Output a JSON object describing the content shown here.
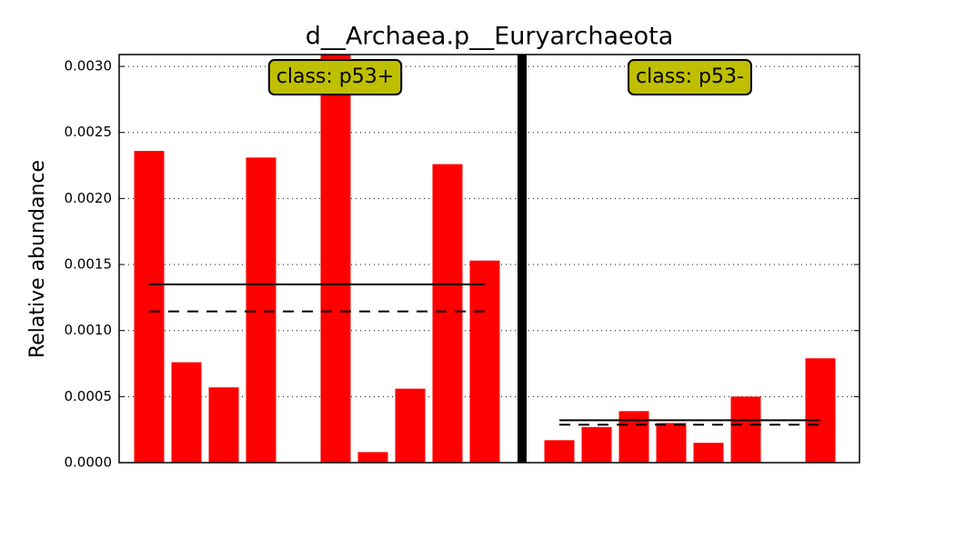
{
  "chart_data": {
    "type": "bar",
    "title": "d__Archaea.p__Euryarchaeota",
    "ylabel": "Relative abundance",
    "color": "#ff0000",
    "grid": true,
    "ylim": [
      0,
      0.00309
    ],
    "yticks": [
      {
        "value": 0,
        "label": "0.0000"
      },
      {
        "value": 0.0005,
        "label": "0.0005"
      },
      {
        "value": 0.001,
        "label": "0.0010"
      },
      {
        "value": 0.0015,
        "label": "0.0015"
      },
      {
        "value": 0.002,
        "label": "0.0020"
      },
      {
        "value": 0.0025,
        "label": "0.0025"
      },
      {
        "value": 0.003,
        "label": "0.0030"
      }
    ],
    "groups": [
      {
        "name": "class: p53+",
        "values": [
          0.00236,
          0.00076,
          0.00057,
          0.00231,
          0,
          0.0031,
          8e-05,
          0.00056,
          0.00226,
          0.00153
        ],
        "mean": 0.00135,
        "median": 0.001145
      },
      {
        "name": "class: p53-",
        "values": [
          0.00017,
          0.00027,
          0.00039,
          0.0003,
          0.00015,
          0.0005,
          0,
          0.00079
        ],
        "mean": 0.000321,
        "median": 0.000287
      }
    ]
  }
}
